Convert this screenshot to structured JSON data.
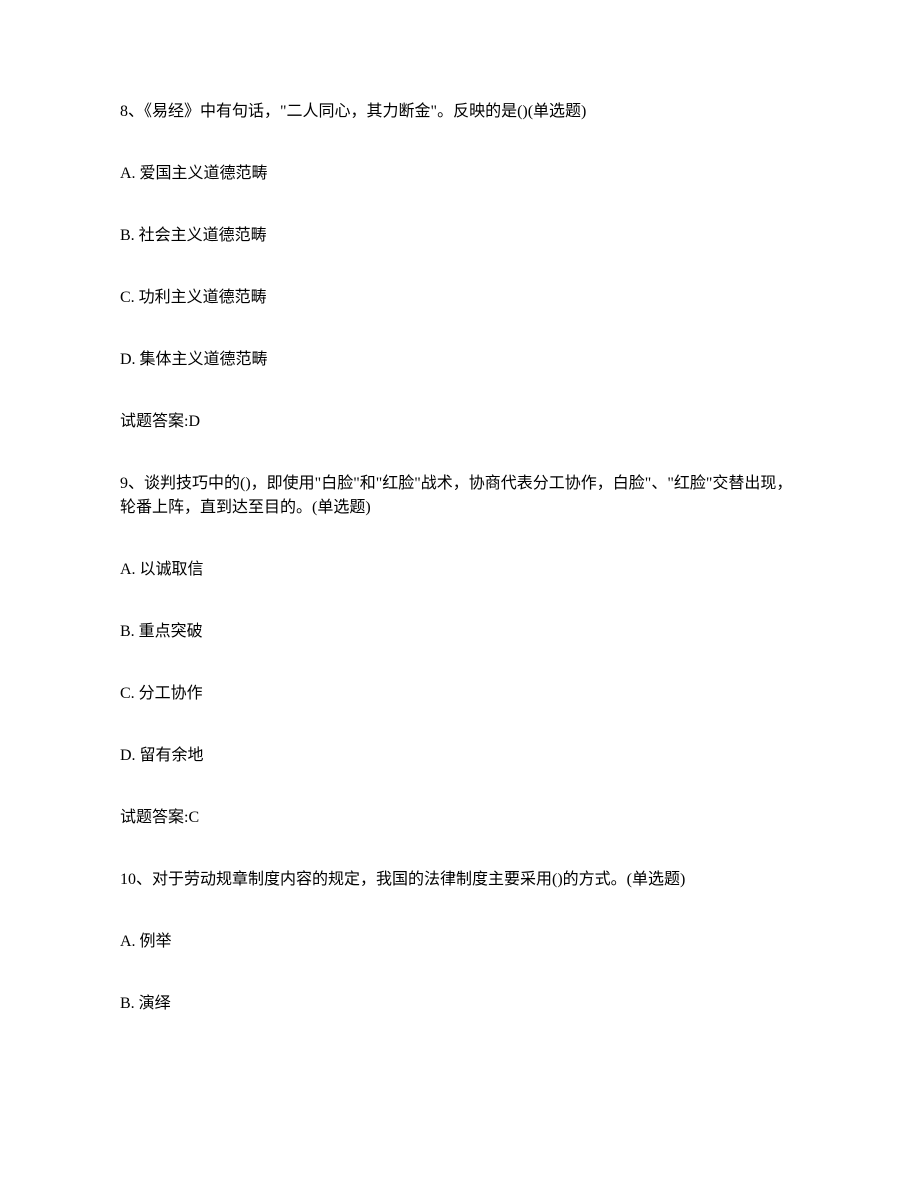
{
  "q8": {
    "stem": "8、《易经》中有句话，\"二人同心，其力断金\"。反映的是()(单选题)",
    "optA": "A. 爱国主义道德范畴",
    "optB": "B. 社会主义道德范畴",
    "optC": "C. 功利主义道德范畴",
    "optD": "D. 集体主义道德范畴",
    "answer": "试题答案:D"
  },
  "q9": {
    "stem": "9、谈判技巧中的()，即使用\"白脸\"和\"红脸\"战术，协商代表分工协作，白脸\"、\"红脸\"交替出现，轮番上阵，直到达至目的。(单选题)",
    "optA": "A. 以诚取信",
    "optB": "B. 重点突破",
    "optC": "C. 分工协作",
    "optD": "D. 留有余地",
    "answer": "试题答案:C"
  },
  "q10": {
    "stem": "10、对于劳动规章制度内容的规定，我国的法律制度主要采用()的方式。(单选题)",
    "optA": "A. 例举",
    "optB": "B. 演绎"
  }
}
